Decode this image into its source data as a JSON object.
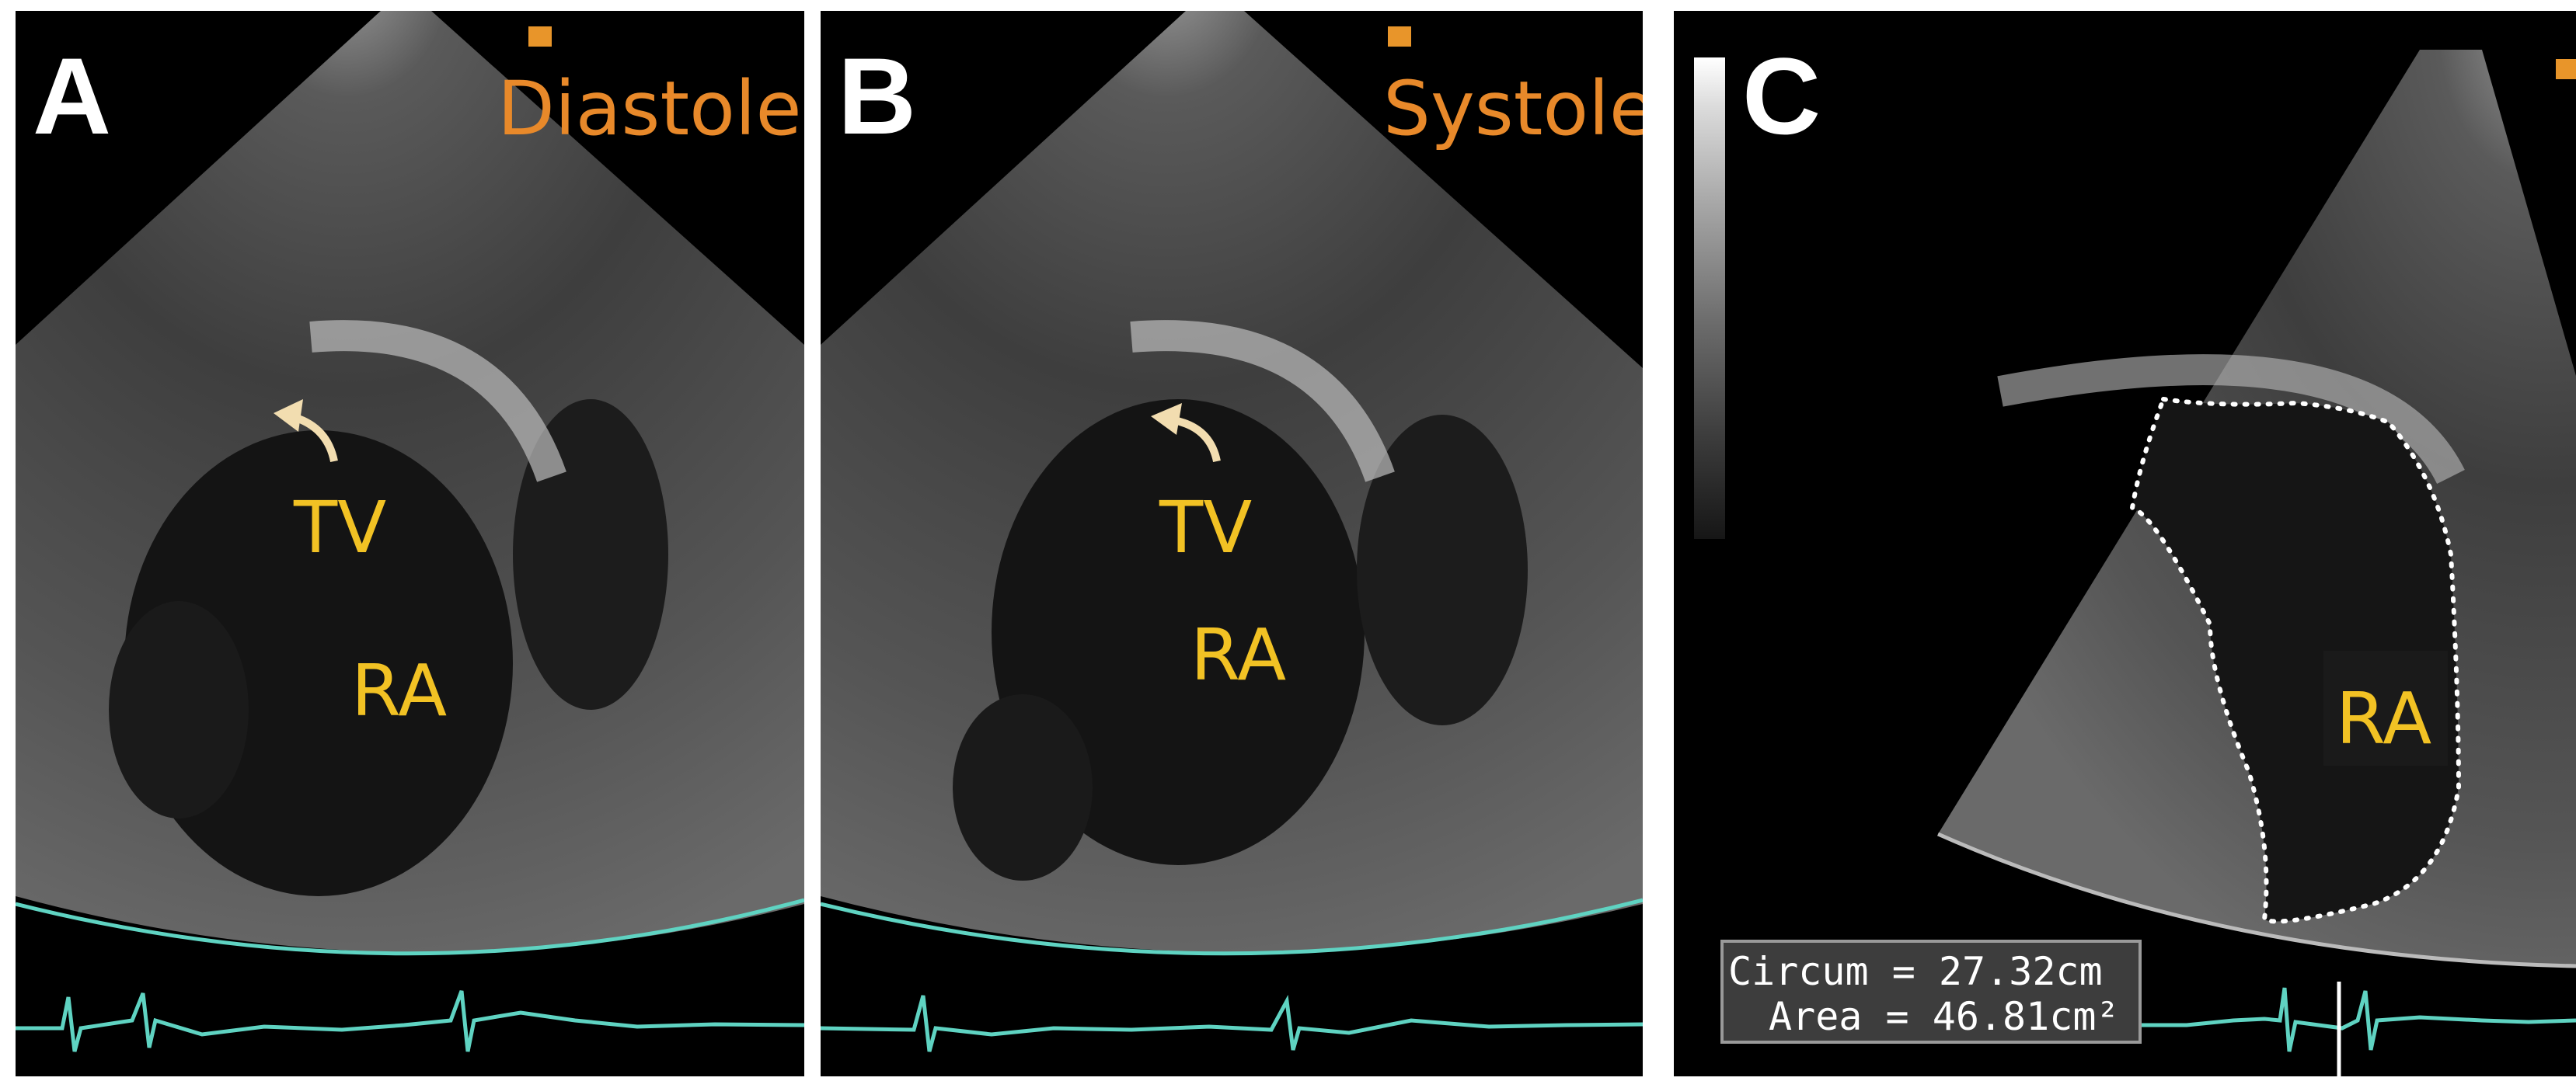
{
  "colors": {
    "phase_label": "#e8892a",
    "structure_label": "#f2c224",
    "ecg_trace": "#5fd3c2",
    "arrow": "#f2ddb0",
    "measurement_box": "#3d3d3d"
  },
  "panels": [
    {
      "letter": "A",
      "phase": "Diastole",
      "labels": [
        "TV",
        "RA"
      ]
    },
    {
      "letter": "B",
      "phase": "Systole",
      "labels": [
        "TV",
        "RA"
      ]
    },
    {
      "letter": "C",
      "labels": [
        "RA"
      ],
      "measurement": {
        "circum": "Circum = 27.32cm",
        "area": "Area = 46.81cm²"
      }
    }
  ],
  "icons": [
    "curved-arrow-icon",
    "probe-marker-icon",
    "depth-marker-icon",
    "ecg-trace-icon",
    "grayscale-bar-icon"
  ]
}
